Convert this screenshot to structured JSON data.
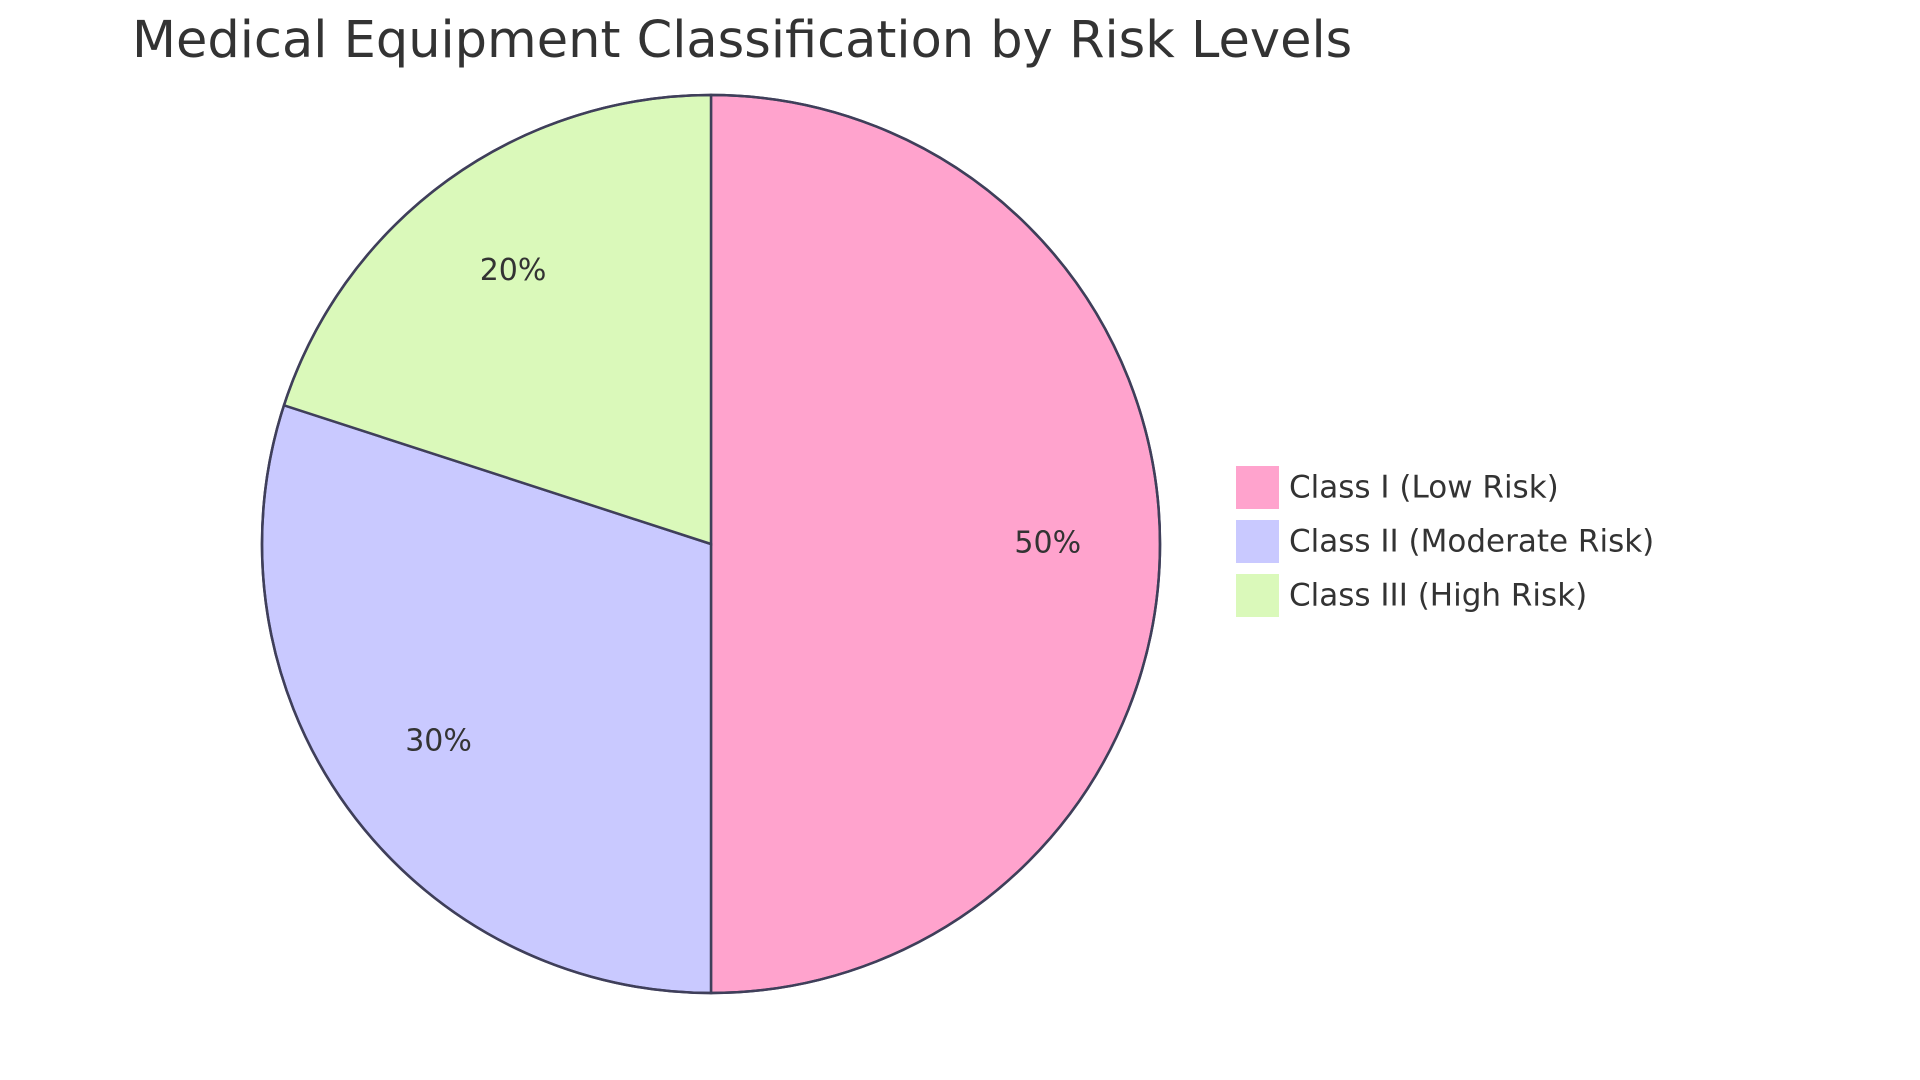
{
  "chart_data": {
    "type": "pie",
    "title": "Medical Equipment Classification by Risk Levels",
    "categories": [
      "Class I (Low Risk)",
      "Class II (Moderate Risk)",
      "Class III (High Risk)"
    ],
    "values": [
      50,
      30,
      20
    ],
    "value_labels": [
      "50%",
      "30%",
      "20%"
    ],
    "colors": [
      "#ffa3cd",
      "#c9c9ff",
      "#daf9ba"
    ],
    "legend": "right"
  }
}
